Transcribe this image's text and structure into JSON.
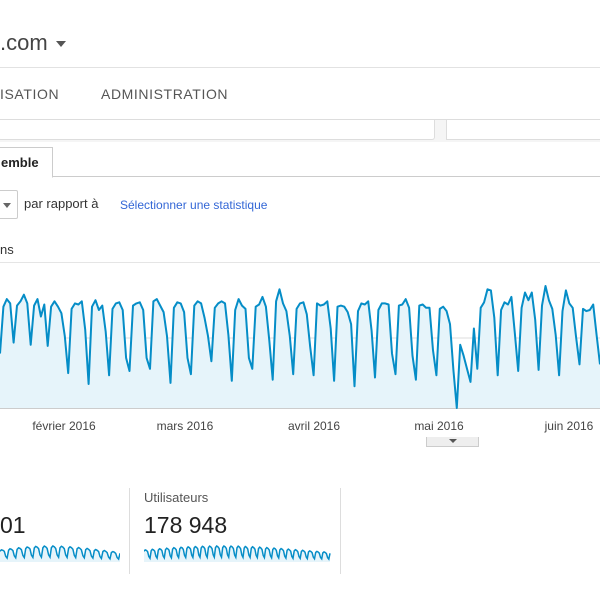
{
  "header": {
    "site_title": ".com"
  },
  "nav": {
    "tabs": [
      {
        "label": "ISATION"
      },
      {
        "label": "ADMINISTRATION"
      }
    ]
  },
  "tabs": {
    "active_label": "emble"
  },
  "controls": {
    "compare_label": "par rapport à",
    "select_metric_link": "Sélectionner une statistique"
  },
  "chart_series_label": "ns",
  "colors": {
    "line": "#058dc7",
    "fill": "#e6f4fa",
    "link": "#3367d6"
  },
  "chart_data": {
    "type": "area",
    "xlabels": [
      "février 2016",
      "mars 2016",
      "avril 2016",
      "mai 2016",
      "juin 2016"
    ],
    "grid": true,
    "values": [
      50,
      93,
      100,
      96,
      60,
      94,
      98,
      104,
      96,
      58,
      94,
      100,
      84,
      95,
      57,
      93,
      98,
      93,
      87,
      66,
      32,
      91,
      96,
      95,
      98,
      72,
      22,
      93,
      99,
      90,
      94,
      70,
      30,
      91,
      96,
      97,
      90,
      46,
      34,
      94,
      96,
      97,
      90,
      46,
      36,
      98,
      100,
      94,
      88,
      66,
      23,
      92,
      97,
      96,
      88,
      46,
      31,
      94,
      98,
      96,
      83,
      66,
      43,
      92,
      96,
      98,
      96,
      67,
      25,
      90,
      100,
      94,
      91,
      46,
      36,
      93,
      95,
      102,
      93,
      62,
      26,
      98,
      109,
      96,
      89,
      66,
      31,
      91,
      96,
      97,
      86,
      56,
      30,
      96,
      94,
      95,
      98,
      73,
      25,
      93,
      94,
      93,
      88,
      77,
      20,
      89,
      96,
      95,
      98,
      71,
      28,
      90,
      96,
      96,
      95,
      50,
      31,
      94,
      95,
      100,
      92,
      48,
      26,
      94,
      95,
      92,
      92,
      53,
      30,
      91,
      93,
      89,
      77,
      35,
      0,
      58,
      48,
      36,
      24,
      73,
      36,
      92,
      97,
      109,
      108,
      83,
      30,
      90,
      97,
      95,
      102,
      69,
      34,
      92,
      106,
      99,
      106,
      81,
      35,
      94,
      112,
      99,
      91,
      67,
      30,
      89,
      108,
      96,
      92,
      65,
      40,
      91,
      89,
      90,
      95,
      67,
      40
    ]
  },
  "cards": [
    {
      "label": "",
      "value": "01"
    },
    {
      "label": "Utilisateurs",
      "value": "178 948"
    }
  ]
}
